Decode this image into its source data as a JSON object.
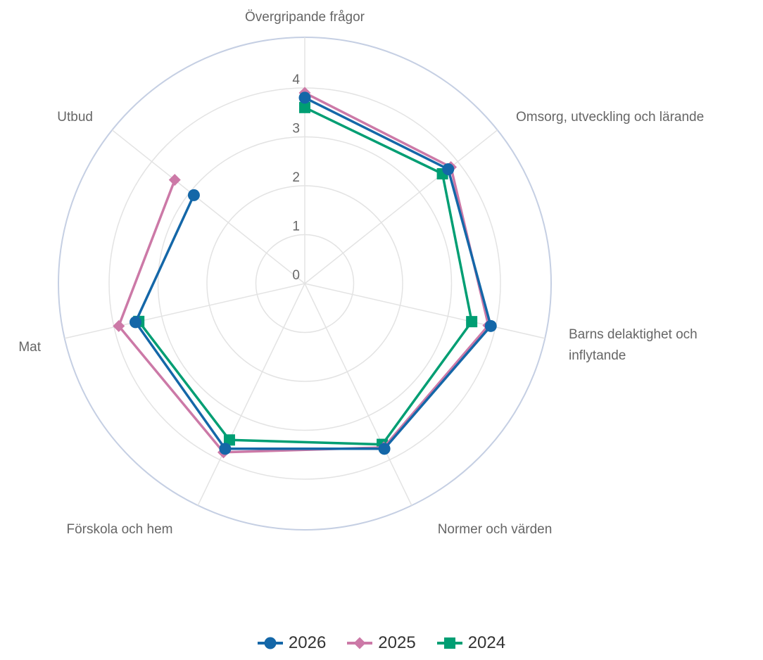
{
  "chart_data": {
    "type": "radar",
    "categories": [
      "Övergripande frågor",
      "Omsorg, utveckling och lärande",
      "Barns delaktighet och inflytande",
      "Normer och värden",
      "Förskola och hem",
      "Mat",
      "Utbud"
    ],
    "ticks": [
      "0",
      "1",
      "2",
      "3",
      "4"
    ],
    "rmax": 5,
    "grid": true,
    "legend_position": "bottom",
    "series": [
      {
        "name": "2026",
        "values": [
          3.8,
          3.75,
          3.9,
          3.75,
          3.75,
          3.55,
          2.9
        ],
        "color": "#1467a8",
        "marker": "circle"
      },
      {
        "name": "2025",
        "values": [
          3.9,
          3.82,
          3.85,
          3.72,
          3.83,
          3.9,
          3.4
        ],
        "color": "#cc79a7",
        "marker": "diamond"
      },
      {
        "name": "2024",
        "values": [
          3.6,
          3.6,
          3.5,
          3.65,
          3.55,
          3.48,
          null
        ],
        "color": "#009e73",
        "marker": "square"
      }
    ]
  }
}
